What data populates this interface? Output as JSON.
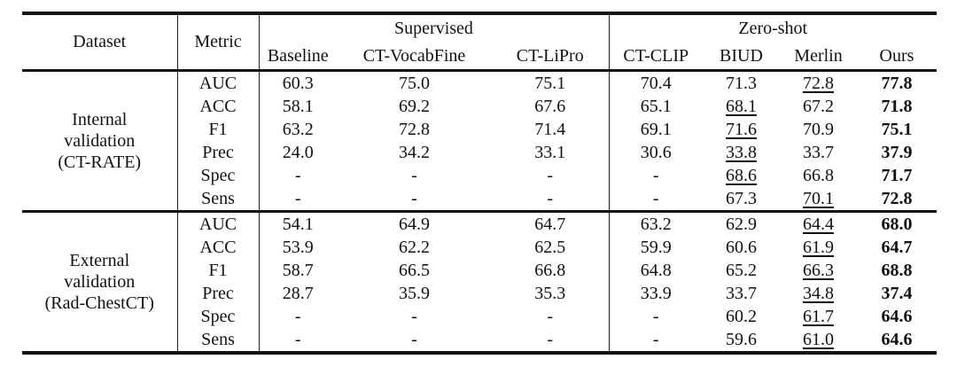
{
  "page": {
    "background": "#ffffff",
    "text_color": "#111111"
  },
  "table": {
    "header": {
      "dataset": "Dataset",
      "metric": "Metric",
      "groups": [
        {
          "label": "Supervised",
          "columns": [
            "Baseline",
            "CT-VocabFine",
            "CT-LiPro"
          ]
        },
        {
          "label": "Zero-shot",
          "columns": [
            "CT-CLIP",
            "BIUD",
            "Merlin",
            "Ours"
          ]
        }
      ]
    },
    "blocks": [
      {
        "dataset_lines": [
          "Internal",
          "validation",
          "(CT-RATE)"
        ],
        "rows": [
          {
            "metric": "AUC",
            "cells": [
              {
                "t": "60.3"
              },
              {
                "t": "75.0"
              },
              {
                "t": "75.1"
              },
              {
                "t": "70.4"
              },
              {
                "t": "71.3"
              },
              {
                "t": "72.8",
                "s": "underline"
              },
              {
                "t": "77.8",
                "s": "bold"
              }
            ]
          },
          {
            "metric": "ACC",
            "cells": [
              {
                "t": "58.1"
              },
              {
                "t": "69.2"
              },
              {
                "t": "67.6"
              },
              {
                "t": "65.1"
              },
              {
                "t": "68.1",
                "s": "underline"
              },
              {
                "t": "67.2"
              },
              {
                "t": "71.8",
                "s": "bold"
              }
            ]
          },
          {
            "metric": "F1",
            "cells": [
              {
                "t": "63.2"
              },
              {
                "t": "72.8"
              },
              {
                "t": "71.4"
              },
              {
                "t": "69.1"
              },
              {
                "t": "71.6",
                "s": "underline"
              },
              {
                "t": "70.9"
              },
              {
                "t": "75.1",
                "s": "bold"
              }
            ]
          },
          {
            "metric": "Prec",
            "cells": [
              {
                "t": "24.0"
              },
              {
                "t": "34.2"
              },
              {
                "t": "33.1"
              },
              {
                "t": "30.6"
              },
              {
                "t": "33.8",
                "s": "underline"
              },
              {
                "t": "33.7"
              },
              {
                "t": "37.9",
                "s": "bold"
              }
            ]
          },
          {
            "metric": "Spec",
            "cells": [
              {
                "t": "-"
              },
              {
                "t": "-"
              },
              {
                "t": "-"
              },
              {
                "t": "-"
              },
              {
                "t": "68.6",
                "s": "underline"
              },
              {
                "t": "66.8"
              },
              {
                "t": "71.7",
                "s": "bold"
              }
            ]
          },
          {
            "metric": "Sens",
            "cells": [
              {
                "t": "-"
              },
              {
                "t": "-"
              },
              {
                "t": "-"
              },
              {
                "t": "-"
              },
              {
                "t": "67.3"
              },
              {
                "t": "70.1",
                "s": "underline"
              },
              {
                "t": "72.8",
                "s": "bold"
              }
            ]
          }
        ]
      },
      {
        "dataset_lines": [
          "External",
          "validation",
          "(Rad-ChestCT)"
        ],
        "rows": [
          {
            "metric": "AUC",
            "cells": [
              {
                "t": "54.1"
              },
              {
                "t": "64.9"
              },
              {
                "t": "64.7"
              },
              {
                "t": "63.2"
              },
              {
                "t": "62.9"
              },
              {
                "t": "64.4",
                "s": "underline"
              },
              {
                "t": "68.0",
                "s": "bold"
              }
            ]
          },
          {
            "metric": "ACC",
            "cells": [
              {
                "t": "53.9"
              },
              {
                "t": "62.2"
              },
              {
                "t": "62.5"
              },
              {
                "t": "59.9"
              },
              {
                "t": "60.6"
              },
              {
                "t": "61.9",
                "s": "underline"
              },
              {
                "t": "64.7",
                "s": "bold"
              }
            ]
          },
          {
            "metric": "F1",
            "cells": [
              {
                "t": "58.7"
              },
              {
                "t": "66.5"
              },
              {
                "t": "66.8"
              },
              {
                "t": "64.8"
              },
              {
                "t": "65.2"
              },
              {
                "t": "66.3",
                "s": "underline"
              },
              {
                "t": "68.8",
                "s": "bold"
              }
            ]
          },
          {
            "metric": "Prec",
            "cells": [
              {
                "t": "28.7"
              },
              {
                "t": "35.9"
              },
              {
                "t": "35.3"
              },
              {
                "t": "33.9"
              },
              {
                "t": "33.7"
              },
              {
                "t": "34.8",
                "s": "underline"
              },
              {
                "t": "37.4",
                "s": "bold"
              }
            ]
          },
          {
            "metric": "Spec",
            "cells": [
              {
                "t": "-"
              },
              {
                "t": "-"
              },
              {
                "t": "-"
              },
              {
                "t": "-"
              },
              {
                "t": "60.2"
              },
              {
                "t": "61.7",
                "s": "underline"
              },
              {
                "t": "64.6",
                "s": "bold"
              }
            ]
          },
          {
            "metric": "Sens",
            "cells": [
              {
                "t": "-"
              },
              {
                "t": "-"
              },
              {
                "t": "-"
              },
              {
                "t": "-"
              },
              {
                "t": "59.6"
              },
              {
                "t": "61.0",
                "s": "underline"
              },
              {
                "t": "64.6",
                "s": "bold"
              }
            ]
          }
        ]
      }
    ]
  }
}
